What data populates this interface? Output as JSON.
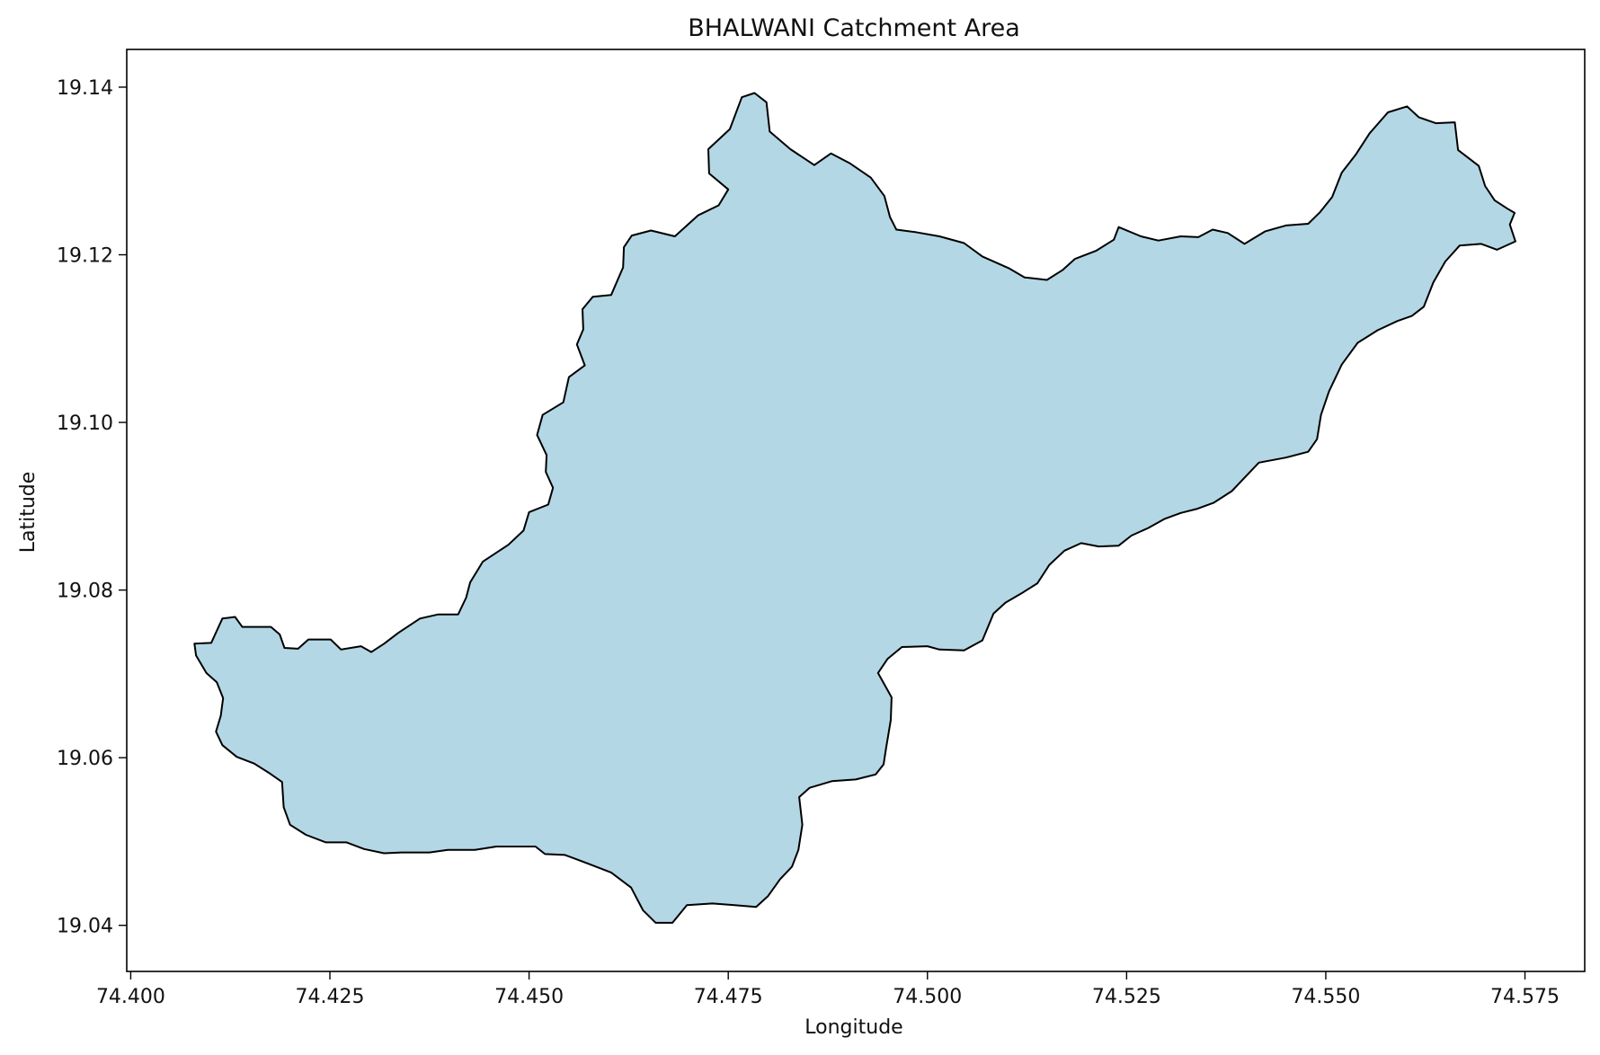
{
  "chart_data": {
    "type": "area",
    "title": "BHALWANI Catchment Area",
    "xlabel": "Longitude",
    "ylabel": "Latitude",
    "xlim": [
      74.3995,
      74.5825
    ],
    "ylim": [
      19.0345,
      19.1445
    ],
    "xticks": [
      {
        "value": 74.4,
        "label": "74.400"
      },
      {
        "value": 74.425,
        "label": "74.425"
      },
      {
        "value": 74.45,
        "label": "74.450"
      },
      {
        "value": 74.475,
        "label": "74.475"
      },
      {
        "value": 74.5,
        "label": "74.500"
      },
      {
        "value": 74.525,
        "label": "74.525"
      },
      {
        "value": 74.55,
        "label": "74.550"
      },
      {
        "value": 74.575,
        "label": "74.575"
      }
    ],
    "yticks": [
      {
        "value": 19.04,
        "label": "19.04"
      },
      {
        "value": 19.06,
        "label": "19.06"
      },
      {
        "value": 19.08,
        "label": "19.08"
      },
      {
        "value": 19.1,
        "label": "19.10"
      },
      {
        "value": 19.12,
        "label": "19.12"
      },
      {
        "value": 19.14,
        "label": "19.14"
      }
    ],
    "grid": false,
    "colors": {
      "fill": "#b3d7e5",
      "outline": "#000000",
      "axes": "#000000"
    },
    "polygon": [
      [
        74.4082,
        19.0722
      ],
      [
        74.408,
        19.0736
      ],
      [
        74.4101,
        19.0737
      ],
      [
        74.4115,
        19.0766
      ],
      [
        74.4131,
        19.0768
      ],
      [
        74.414,
        19.0756
      ],
      [
        74.4176,
        19.0756
      ],
      [
        74.4187,
        19.0747
      ],
      [
        74.4193,
        19.0731
      ],
      [
        74.421,
        19.073
      ],
      [
        74.4223,
        19.0741
      ],
      [
        74.4251,
        19.0741
      ],
      [
        74.4264,
        19.0729
      ],
      [
        74.4289,
        19.0733
      ],
      [
        74.4302,
        19.0726
      ],
      [
        74.4318,
        19.0736
      ],
      [
        74.4336,
        19.0749
      ],
      [
        74.4363,
        19.0766
      ],
      [
        74.4386,
        19.0771
      ],
      [
        74.4411,
        19.0771
      ],
      [
        74.4421,
        19.0791
      ],
      [
        74.4426,
        19.0809
      ],
      [
        74.4442,
        19.0834
      ],
      [
        74.4474,
        19.0854
      ],
      [
        74.4493,
        19.0871
      ],
      [
        74.45,
        19.0893
      ],
      [
        74.4524,
        19.0902
      ],
      [
        74.453,
        19.0922
      ],
      [
        74.4521,
        19.0941
      ],
      [
        74.4522,
        19.0961
      ],
      [
        74.451,
        19.0985
      ],
      [
        74.4517,
        19.1009
      ],
      [
        74.4543,
        19.1024
      ],
      [
        74.455,
        19.1054
      ],
      [
        74.457,
        19.1068
      ],
      [
        74.456,
        19.1093
      ],
      [
        74.4568,
        19.1111
      ],
      [
        74.4567,
        19.1135
      ],
      [
        74.458,
        19.115
      ],
      [
        74.4603,
        19.1152
      ],
      [
        74.4618,
        19.1185
      ],
      [
        74.4619,
        19.1209
      ],
      [
        74.4629,
        19.1223
      ],
      [
        74.4653,
        19.1229
      ],
      [
        74.4683,
        19.1222
      ],
      [
        74.4712,
        19.1247
      ],
      [
        74.4738,
        19.1259
      ],
      [
        74.475,
        19.1278
      ],
      [
        74.4726,
        19.1297
      ],
      [
        74.4725,
        19.1326
      ],
      [
        74.4752,
        19.135
      ],
      [
        74.4767,
        19.1388
      ],
      [
        74.4783,
        19.1393
      ],
      [
        74.4798,
        19.1382
      ],
      [
        74.4802,
        19.1347
      ],
      [
        74.4828,
        19.1326
      ],
      [
        74.4858,
        19.1307
      ],
      [
        74.4879,
        19.1321
      ],
      [
        74.4903,
        19.1309
      ],
      [
        74.4929,
        19.1292
      ],
      [
        74.4946,
        19.127
      ],
      [
        74.4953,
        19.1245
      ],
      [
        74.4961,
        19.123
      ],
      [
        74.4985,
        19.1227
      ],
      [
        74.5015,
        19.1222
      ],
      [
        74.5046,
        19.1214
      ],
      [
        74.5069,
        19.1198
      ],
      [
        74.5102,
        19.1184
      ],
      [
        74.5122,
        19.1173
      ],
      [
        74.515,
        19.117
      ],
      [
        74.517,
        19.1182
      ],
      [
        74.5185,
        19.1195
      ],
      [
        74.5212,
        19.1205
      ],
      [
        74.5234,
        19.1218
      ],
      [
        74.524,
        19.1233
      ],
      [
        74.5268,
        19.1222
      ],
      [
        74.529,
        19.1217
      ],
      [
        74.5318,
        19.1222
      ],
      [
        74.534,
        19.1221
      ],
      [
        74.5358,
        19.123
      ],
      [
        74.5377,
        19.1226
      ],
      [
        74.5398,
        19.1213
      ],
      [
        74.5424,
        19.1228
      ],
      [
        74.545,
        19.1235
      ],
      [
        74.5478,
        19.1237
      ],
      [
        74.5493,
        19.1251
      ],
      [
        74.5508,
        19.1269
      ],
      [
        74.552,
        19.1298
      ],
      [
        74.5538,
        19.132
      ],
      [
        74.5555,
        19.1345
      ],
      [
        74.5578,
        19.137
      ],
      [
        74.5602,
        19.1377
      ],
      [
        74.5617,
        19.1364
      ],
      [
        74.5638,
        19.1357
      ],
      [
        74.5662,
        19.1358
      ],
      [
        74.5666,
        19.1325
      ],
      [
        74.5692,
        19.1306
      ],
      [
        74.57,
        19.1282
      ],
      [
        74.5712,
        19.1265
      ],
      [
        74.5728,
        19.1255
      ],
      [
        74.5737,
        19.125
      ],
      [
        74.5731,
        19.1236
      ],
      [
        74.5738,
        19.1216
      ],
      [
        74.5715,
        19.1206
      ],
      [
        74.5695,
        19.1213
      ],
      [
        74.5668,
        19.1211
      ],
      [
        74.565,
        19.1192
      ],
      [
        74.5635,
        19.1167
      ],
      [
        74.5623,
        19.1138
      ],
      [
        74.5608,
        19.1127
      ],
      [
        74.559,
        19.1121
      ],
      [
        74.5565,
        19.111
      ],
      [
        74.554,
        19.1095
      ],
      [
        74.552,
        19.1069
      ],
      [
        74.5504,
        19.1037
      ],
      [
        74.5494,
        19.1009
      ],
      [
        74.5489,
        19.098
      ],
      [
        74.5478,
        19.0965
      ],
      [
        74.545,
        19.0958
      ],
      [
        74.5416,
        19.0952
      ],
      [
        74.5399,
        19.0935
      ],
      [
        74.5382,
        19.0918
      ],
      [
        74.5359,
        19.0904
      ],
      [
        74.5339,
        19.0897
      ],
      [
        74.5318,
        19.0892
      ],
      [
        74.5298,
        19.0885
      ],
      [
        74.5277,
        19.0874
      ],
      [
        74.5256,
        19.0865
      ],
      [
        74.524,
        19.0853
      ],
      [
        74.5215,
        19.0852
      ],
      [
        74.5193,
        19.0856
      ],
      [
        74.5172,
        19.0847
      ],
      [
        74.5153,
        19.083
      ],
      [
        74.5138,
        19.0808
      ],
      [
        74.5118,
        19.0796
      ],
      [
        74.5098,
        19.0785
      ],
      [
        74.5083,
        19.0772
      ],
      [
        74.5069,
        19.074
      ],
      [
        74.5046,
        19.0728
      ],
      [
        74.5015,
        19.0729
      ],
      [
        74.5,
        19.0733
      ],
      [
        74.4968,
        19.0732
      ],
      [
        74.495,
        19.0718
      ],
      [
        74.4938,
        19.0701
      ],
      [
        74.4955,
        19.0672
      ],
      [
        74.4954,
        19.0645
      ],
      [
        74.4948,
        19.0611
      ],
      [
        74.4945,
        19.0592
      ],
      [
        74.4935,
        19.058
      ],
      [
        74.491,
        19.0574
      ],
      [
        74.488,
        19.0572
      ],
      [
        74.4852,
        19.0564
      ],
      [
        74.4839,
        19.0553
      ],
      [
        74.4843,
        19.052
      ],
      [
        74.4838,
        19.049
      ],
      [
        74.483,
        19.047
      ],
      [
        74.4815,
        19.0455
      ],
      [
        74.48,
        19.0435
      ],
      [
        74.4785,
        19.0422
      ],
      [
        74.4758,
        19.0424
      ],
      [
        74.473,
        19.0426
      ],
      [
        74.4698,
        19.0424
      ],
      [
        74.468,
        19.0403
      ],
      [
        74.4659,
        19.0403
      ],
      [
        74.4643,
        19.0418
      ],
      [
        74.4628,
        19.0445
      ],
      [
        74.4603,
        19.0463
      ],
      [
        74.4573,
        19.0474
      ],
      [
        74.4545,
        19.0484
      ],
      [
        74.452,
        19.0485
      ],
      [
        74.4508,
        19.0494
      ],
      [
        74.4485,
        19.0494
      ],
      [
        74.4459,
        19.0494
      ],
      [
        74.4432,
        19.049
      ],
      [
        74.4398,
        19.049
      ],
      [
        74.4375,
        19.0487
      ],
      [
        74.434,
        19.0487
      ],
      [
        74.4318,
        19.0486
      ],
      [
        74.4293,
        19.0491
      ],
      [
        74.4271,
        19.0499
      ],
      [
        74.4245,
        19.0499
      ],
      [
        74.422,
        19.0508
      ],
      [
        74.42,
        19.052
      ],
      [
        74.4192,
        19.0541
      ],
      [
        74.419,
        19.0571
      ],
      [
        74.4175,
        19.0581
      ],
      [
        74.4155,
        19.0593
      ],
      [
        74.4133,
        19.0601
      ],
      [
        74.4115,
        19.0615
      ],
      [
        74.4107,
        19.0631
      ],
      [
        74.4113,
        19.065
      ],
      [
        74.4116,
        19.0671
      ],
      [
        74.4108,
        19.069
      ],
      [
        74.4095,
        19.0701
      ],
      [
        74.4082,
        19.0722
      ]
    ]
  }
}
